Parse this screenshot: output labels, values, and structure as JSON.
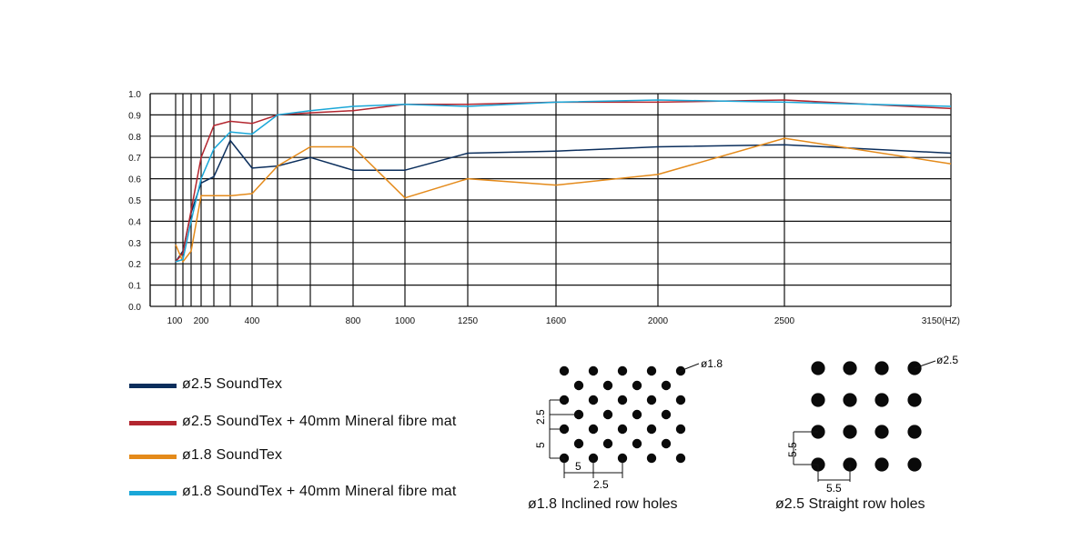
{
  "chart_data": {
    "type": "line",
    "xlabel": "",
    "ylabel": "",
    "x_tick_labels": [
      "100",
      "200",
      "400",
      "800",
      "1000",
      "1250",
      "1600",
      "2000",
      "2500",
      "3150(HZ)"
    ],
    "y_tick_labels": [
      "0.0",
      "0.1",
      "0.2",
      "0.3",
      "0.4",
      "0.5",
      "0.6",
      "0.7",
      "0.8",
      "0.9",
      "1.0"
    ],
    "ylim": [
      0,
      1
    ],
    "x": [
      100,
      125,
      160,
      200,
      250,
      315,
      400,
      500,
      630,
      800,
      1000,
      1250,
      1600,
      2000,
      2500,
      3150
    ],
    "grid": true,
    "series": [
      {
        "name": "ø2.5 SoundTex",
        "color": "#0b2e5c",
        "values": [
          0.21,
          0.26,
          0.44,
          0.58,
          0.61,
          0.78,
          0.65,
          0.66,
          0.7,
          0.64,
          0.64,
          0.72,
          0.73,
          0.75,
          0.76,
          0.72
        ]
      },
      {
        "name": "ø2.5 SoundTex + 40mm Mineral fibre mat",
        "color": "#b3262f",
        "values": [
          0.21,
          0.25,
          0.45,
          0.7,
          0.85,
          0.87,
          0.86,
          0.9,
          0.91,
          0.92,
          0.95,
          0.95,
          0.96,
          0.96,
          0.97,
          0.93
        ]
      },
      {
        "name": "ø1.8 SoundTex",
        "color": "#e48a1a",
        "values": [
          0.29,
          0.21,
          0.26,
          0.52,
          0.52,
          0.52,
          0.53,
          0.66,
          0.75,
          0.75,
          0.51,
          0.6,
          0.57,
          0.62,
          0.79,
          0.67
        ]
      },
      {
        "name": "ø1.8 SoundTex + 40mm Mineral fibre mat",
        "color": "#1aa7d8",
        "values": [
          0.21,
          0.22,
          0.4,
          0.6,
          0.74,
          0.82,
          0.81,
          0.9,
          0.92,
          0.94,
          0.95,
          0.94,
          0.96,
          0.97,
          0.96,
          0.94
        ]
      }
    ]
  },
  "legend": {
    "items": [
      {
        "label": "ø2.5 SoundTex",
        "color": "#0b2e5c"
      },
      {
        "label": "ø2.5 SoundTex + 40mm Mineral fibre mat",
        "color": "#b3262f"
      },
      {
        "label": "ø1.8 SoundTex",
        "color": "#e48a1a"
      },
      {
        "label": "ø1.8 SoundTex + 40mm Mineral fibre mat",
        "color": "#1aa7d8"
      }
    ]
  },
  "hole_patterns": {
    "inclined": {
      "caption": "ø1.8 Inclined row holes",
      "diameter_label": "ø1.8",
      "dim_vertical_small": "2.5",
      "dim_vertical_large": "5",
      "dim_horizontal_large": "5",
      "dim_horizontal_small": "2.5"
    },
    "straight": {
      "caption": "ø2.5 Straight row holes",
      "diameter_label": "ø2.5",
      "dim_vertical": "5.5",
      "dim_horizontal": "5.5"
    }
  }
}
